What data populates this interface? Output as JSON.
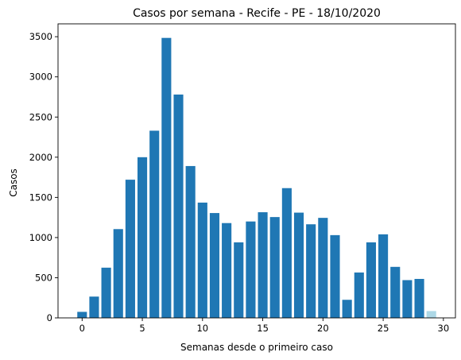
{
  "chart_data": {
    "type": "bar",
    "title": "Casos por semana - Recife - PE - 18/10/2020",
    "xlabel": "Semanas desde o primeiro caso",
    "ylabel": "Casos",
    "x": [
      0,
      1,
      2,
      3,
      4,
      5,
      6,
      7,
      8,
      9,
      10,
      11,
      12,
      13,
      14,
      15,
      16,
      17,
      18,
      19,
      20,
      21,
      22,
      23,
      24,
      25,
      26,
      27,
      28,
      29
    ],
    "values": [
      75,
      265,
      625,
      1105,
      1720,
      2000,
      2330,
      3485,
      2780,
      1890,
      1435,
      1305,
      1180,
      940,
      1200,
      1315,
      1255,
      1615,
      1310,
      1165,
      1245,
      1030,
      225,
      565,
      940,
      1040,
      635,
      470,
      485,
      85
    ],
    "bar_color": "#1f77b4",
    "last_bar_color": "#add8e6",
    "xlim": [
      -2,
      31
    ],
    "ylim": [
      0,
      3660
    ],
    "xticks": [
      0,
      5,
      10,
      15,
      20,
      25,
      30
    ],
    "yticks": [
      0,
      500,
      1000,
      1500,
      2000,
      2500,
      3000,
      3500
    ],
    "grid": false,
    "legend": "none"
  }
}
